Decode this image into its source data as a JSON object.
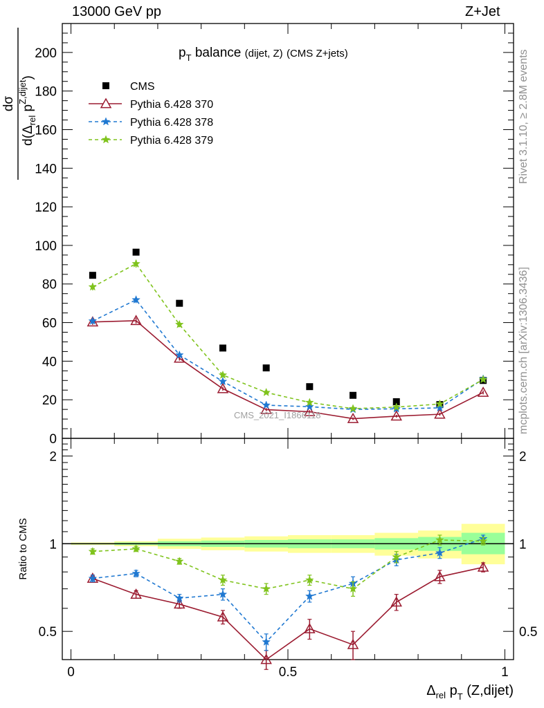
{
  "header": {
    "left": "13000 GeV pp",
    "right": "Z+Jet"
  },
  "side": {
    "top": "Rivet 3.1.10, ≥ 2.8M events",
    "bottom": "mcplots.cern.ch [arXiv:1306.3436]"
  },
  "plot": {
    "title_main": "p",
    "title_sub": "T",
    "title_word": "balance",
    "title_small": "(dijet, Z)",
    "title_tail": "(CMS Z+jets)",
    "analysis_tag": "CMS_2021_I1866118",
    "ylabel_num": "dσ",
    "ylabel_den_a": "d(Δ",
    "ylabel_den_rel": "rel",
    "ylabel_den_p": " p",
    "ylabel_den_sup": "Z,dijet",
    "ylabel_den_close": ")",
    "ratio_ylabel": "Ratio to CMS",
    "xlabel_delta": "Δ",
    "xlabel_rel": "rel",
    "xlabel_p": " p",
    "xlabel_T": "T",
    "xlabel_tail": " (Z,dijet)"
  },
  "colors": {
    "cms": "#000000",
    "p370": "#9b1b30",
    "p378": "#1f78d1",
    "p379": "#7fc31c",
    "band_yellow": "#ffff99",
    "band_green": "#99ff99"
  },
  "chart_data": [
    {
      "type": "scatter",
      "panel": "main",
      "x": [
        0.05,
        0.15,
        0.25,
        0.35,
        0.45,
        0.55,
        0.65,
        0.75,
        0.85,
        0.95
      ],
      "xlim": [
        -0.02,
        1.02
      ],
      "ylim": [
        0,
        215
      ],
      "yticks": [
        0,
        20,
        40,
        60,
        80,
        100,
        120,
        140,
        160,
        180,
        200
      ],
      "xticks": [
        0,
        0.5,
        1
      ],
      "xtick_labels": [
        "0",
        "0.5",
        "1"
      ],
      "legend_position": "top-left",
      "series": [
        {
          "name": "CMS",
          "style": "square",
          "values": [
            84.5,
            96.5,
            70.0,
            46.8,
            36.5,
            26.8,
            22.3,
            19.0,
            17.5,
            30.0
          ]
        },
        {
          "name": "Pythia 6.428 370",
          "style": "solid-triangle",
          "values": [
            60.3,
            61.0,
            41.5,
            25.7,
            14.9,
            13.8,
            10.2,
            11.5,
            12.5,
            23.8
          ],
          "errors": [
            1.5,
            1.5,
            1.2,
            1.0,
            0.8,
            0.8,
            0.7,
            0.7,
            0.8,
            1.0
          ]
        },
        {
          "name": "Pythia 6.428 378",
          "style": "dashed-star",
          "values": [
            60.8,
            71.8,
            43.2,
            29.5,
            17.2,
            16.4,
            15.0,
            15.3,
            15.8,
            30.8
          ],
          "errors": [
            1.5,
            1.7,
            1.2,
            1.0,
            0.8,
            0.8,
            0.7,
            0.7,
            0.8,
            1.0
          ]
        },
        {
          "name": "Pythia 6.428 379",
          "style": "dashed-star",
          "values": [
            78.5,
            90.5,
            59.0,
            32.8,
            23.8,
            18.6,
            15.4,
            16.2,
            17.8,
            30.5
          ],
          "errors": [
            1.8,
            2.0,
            1.4,
            1.0,
            0.8,
            0.8,
            0.7,
            0.7,
            0.8,
            1.0
          ]
        }
      ]
    },
    {
      "type": "line",
      "panel": "ratio",
      "ylabel": "Ratio to CMS",
      "x": [
        0.05,
        0.15,
        0.25,
        0.35,
        0.45,
        0.55,
        0.65,
        0.75,
        0.85,
        0.95
      ],
      "ylim": [
        0.4,
        2.3
      ],
      "log_scale": true,
      "yticks": [
        0.5,
        1,
        2
      ],
      "ytick_labels": [
        "0.5",
        "1",
        "2"
      ],
      "bands": {
        "x_edges": [
          0.0,
          0.1,
          0.2,
          0.3,
          0.4,
          0.5,
          0.6,
          0.7,
          0.8,
          0.9,
          1.0
        ],
        "yellow": [
          [
            0.99,
            1.01
          ],
          [
            0.98,
            1.02
          ],
          [
            0.96,
            1.04
          ],
          [
            0.95,
            1.05
          ],
          [
            0.94,
            1.06
          ],
          [
            0.93,
            1.07
          ],
          [
            0.93,
            1.07
          ],
          [
            0.91,
            1.09
          ],
          [
            0.89,
            1.11
          ],
          [
            0.85,
            1.17
          ]
        ],
        "green": [
          [
            0.995,
            1.005
          ],
          [
            0.99,
            1.01
          ],
          [
            0.98,
            1.02
          ],
          [
            0.975,
            1.025
          ],
          [
            0.97,
            1.03
          ],
          [
            0.965,
            1.035
          ],
          [
            0.965,
            1.035
          ],
          [
            0.955,
            1.045
          ],
          [
            0.945,
            1.055
          ],
          [
            0.92,
            1.09
          ]
        ]
      },
      "series": [
        {
          "name": "Pythia 6.428 370",
          "values": [
            0.76,
            0.67,
            0.62,
            0.56,
            0.4,
            0.51,
            0.45,
            0.63,
            0.77,
            0.83
          ],
          "errors": [
            0.02,
            0.02,
            0.02,
            0.03,
            0.03,
            0.04,
            0.05,
            0.04,
            0.04,
            0.03
          ]
        },
        {
          "name": "Pythia 6.428 378",
          "values": [
            0.76,
            0.79,
            0.65,
            0.67,
            0.46,
            0.66,
            0.73,
            0.88,
            0.93,
            1.04
          ],
          "errors": [
            0.02,
            0.02,
            0.02,
            0.03,
            0.03,
            0.03,
            0.04,
            0.04,
            0.04,
            0.03
          ]
        },
        {
          "name": "Pythia 6.428 379",
          "values": [
            0.94,
            0.96,
            0.87,
            0.75,
            0.7,
            0.75,
            0.7,
            0.9,
            1.03,
            1.02
          ],
          "errors": [
            0.02,
            0.02,
            0.02,
            0.03,
            0.03,
            0.03,
            0.04,
            0.04,
            0.04,
            0.03
          ]
        }
      ]
    }
  ]
}
